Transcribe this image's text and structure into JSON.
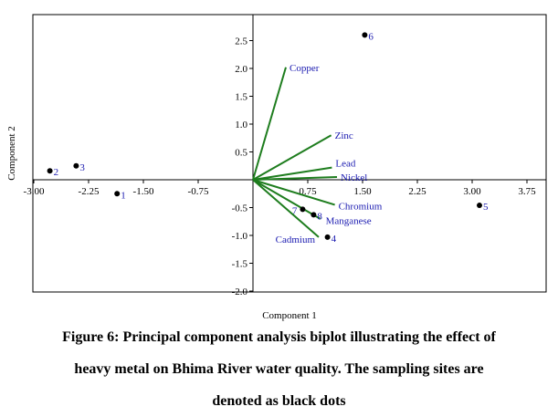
{
  "chart_data": {
    "type": "scatter",
    "subtype": "pca-biplot",
    "xlabel": "Component 1",
    "ylabel": "Component 2",
    "xlim": [
      -3.0,
      4.3
    ],
    "ylim": [
      -2.0,
      3.0
    ],
    "xticks": [
      "-3.00",
      "-2.25",
      "-1.50",
      "-0.75",
      "0.75",
      "1.50",
      "2.25",
      "3.00",
      "3.75"
    ],
    "xtick_values": [
      -3.0,
      -2.25,
      -1.5,
      -0.75,
      0.75,
      1.5,
      2.25,
      3.0,
      3.75
    ],
    "yticks": [
      "2.5",
      "2.0",
      "1.5",
      "1.0",
      "0.5",
      "-0.5",
      "-1.0",
      "-1.5",
      "-2.0"
    ],
    "ytick_values": [
      2.5,
      2.0,
      1.5,
      1.0,
      0.5,
      -0.5,
      -1.0,
      -1.5,
      -2.0
    ],
    "grid": false,
    "vector_color": "#1e7d1e",
    "point_color": "#000000",
    "label_color": "#1a1ab0",
    "loadings": [
      {
        "name": "Copper",
        "x": 0.45,
        "y": 2.02
      },
      {
        "name": "Zinc",
        "x": 1.07,
        "y": 0.8
      },
      {
        "name": "Lead",
        "x": 1.08,
        "y": 0.22
      },
      {
        "name": "Nickel",
        "x": 1.15,
        "y": 0.05
      },
      {
        "name": "Chromium",
        "x": 1.12,
        "y": -0.45
      },
      {
        "name": "Manganese",
        "x": 0.92,
        "y": -0.7
      },
      {
        "name": "Cadmium",
        "x": 0.9,
        "y": -1.03
      }
    ],
    "points": [
      {
        "label": "1",
        "x": -1.86,
        "y": -0.25
      },
      {
        "label": "2",
        "x": -2.78,
        "y": 0.16
      },
      {
        "label": "3",
        "x": -2.42,
        "y": 0.25
      },
      {
        "label": "4",
        "x": 1.02,
        "y": -1.03
      },
      {
        "label": "5",
        "x": 3.1,
        "y": -0.46
      },
      {
        "label": "6",
        "x": 1.53,
        "y": 2.6
      },
      {
        "label": "7",
        "x": 0.68,
        "y": -0.53
      },
      {
        "label": "8",
        "x": 0.83,
        "y": -0.63
      }
    ]
  },
  "caption": {
    "line1": "Figure 6: Principal component analysis biplot illustrating the effect of",
    "line2": "heavy metal on Bhima River water quality. The sampling sites are",
    "line3": "denoted as black dots"
  }
}
